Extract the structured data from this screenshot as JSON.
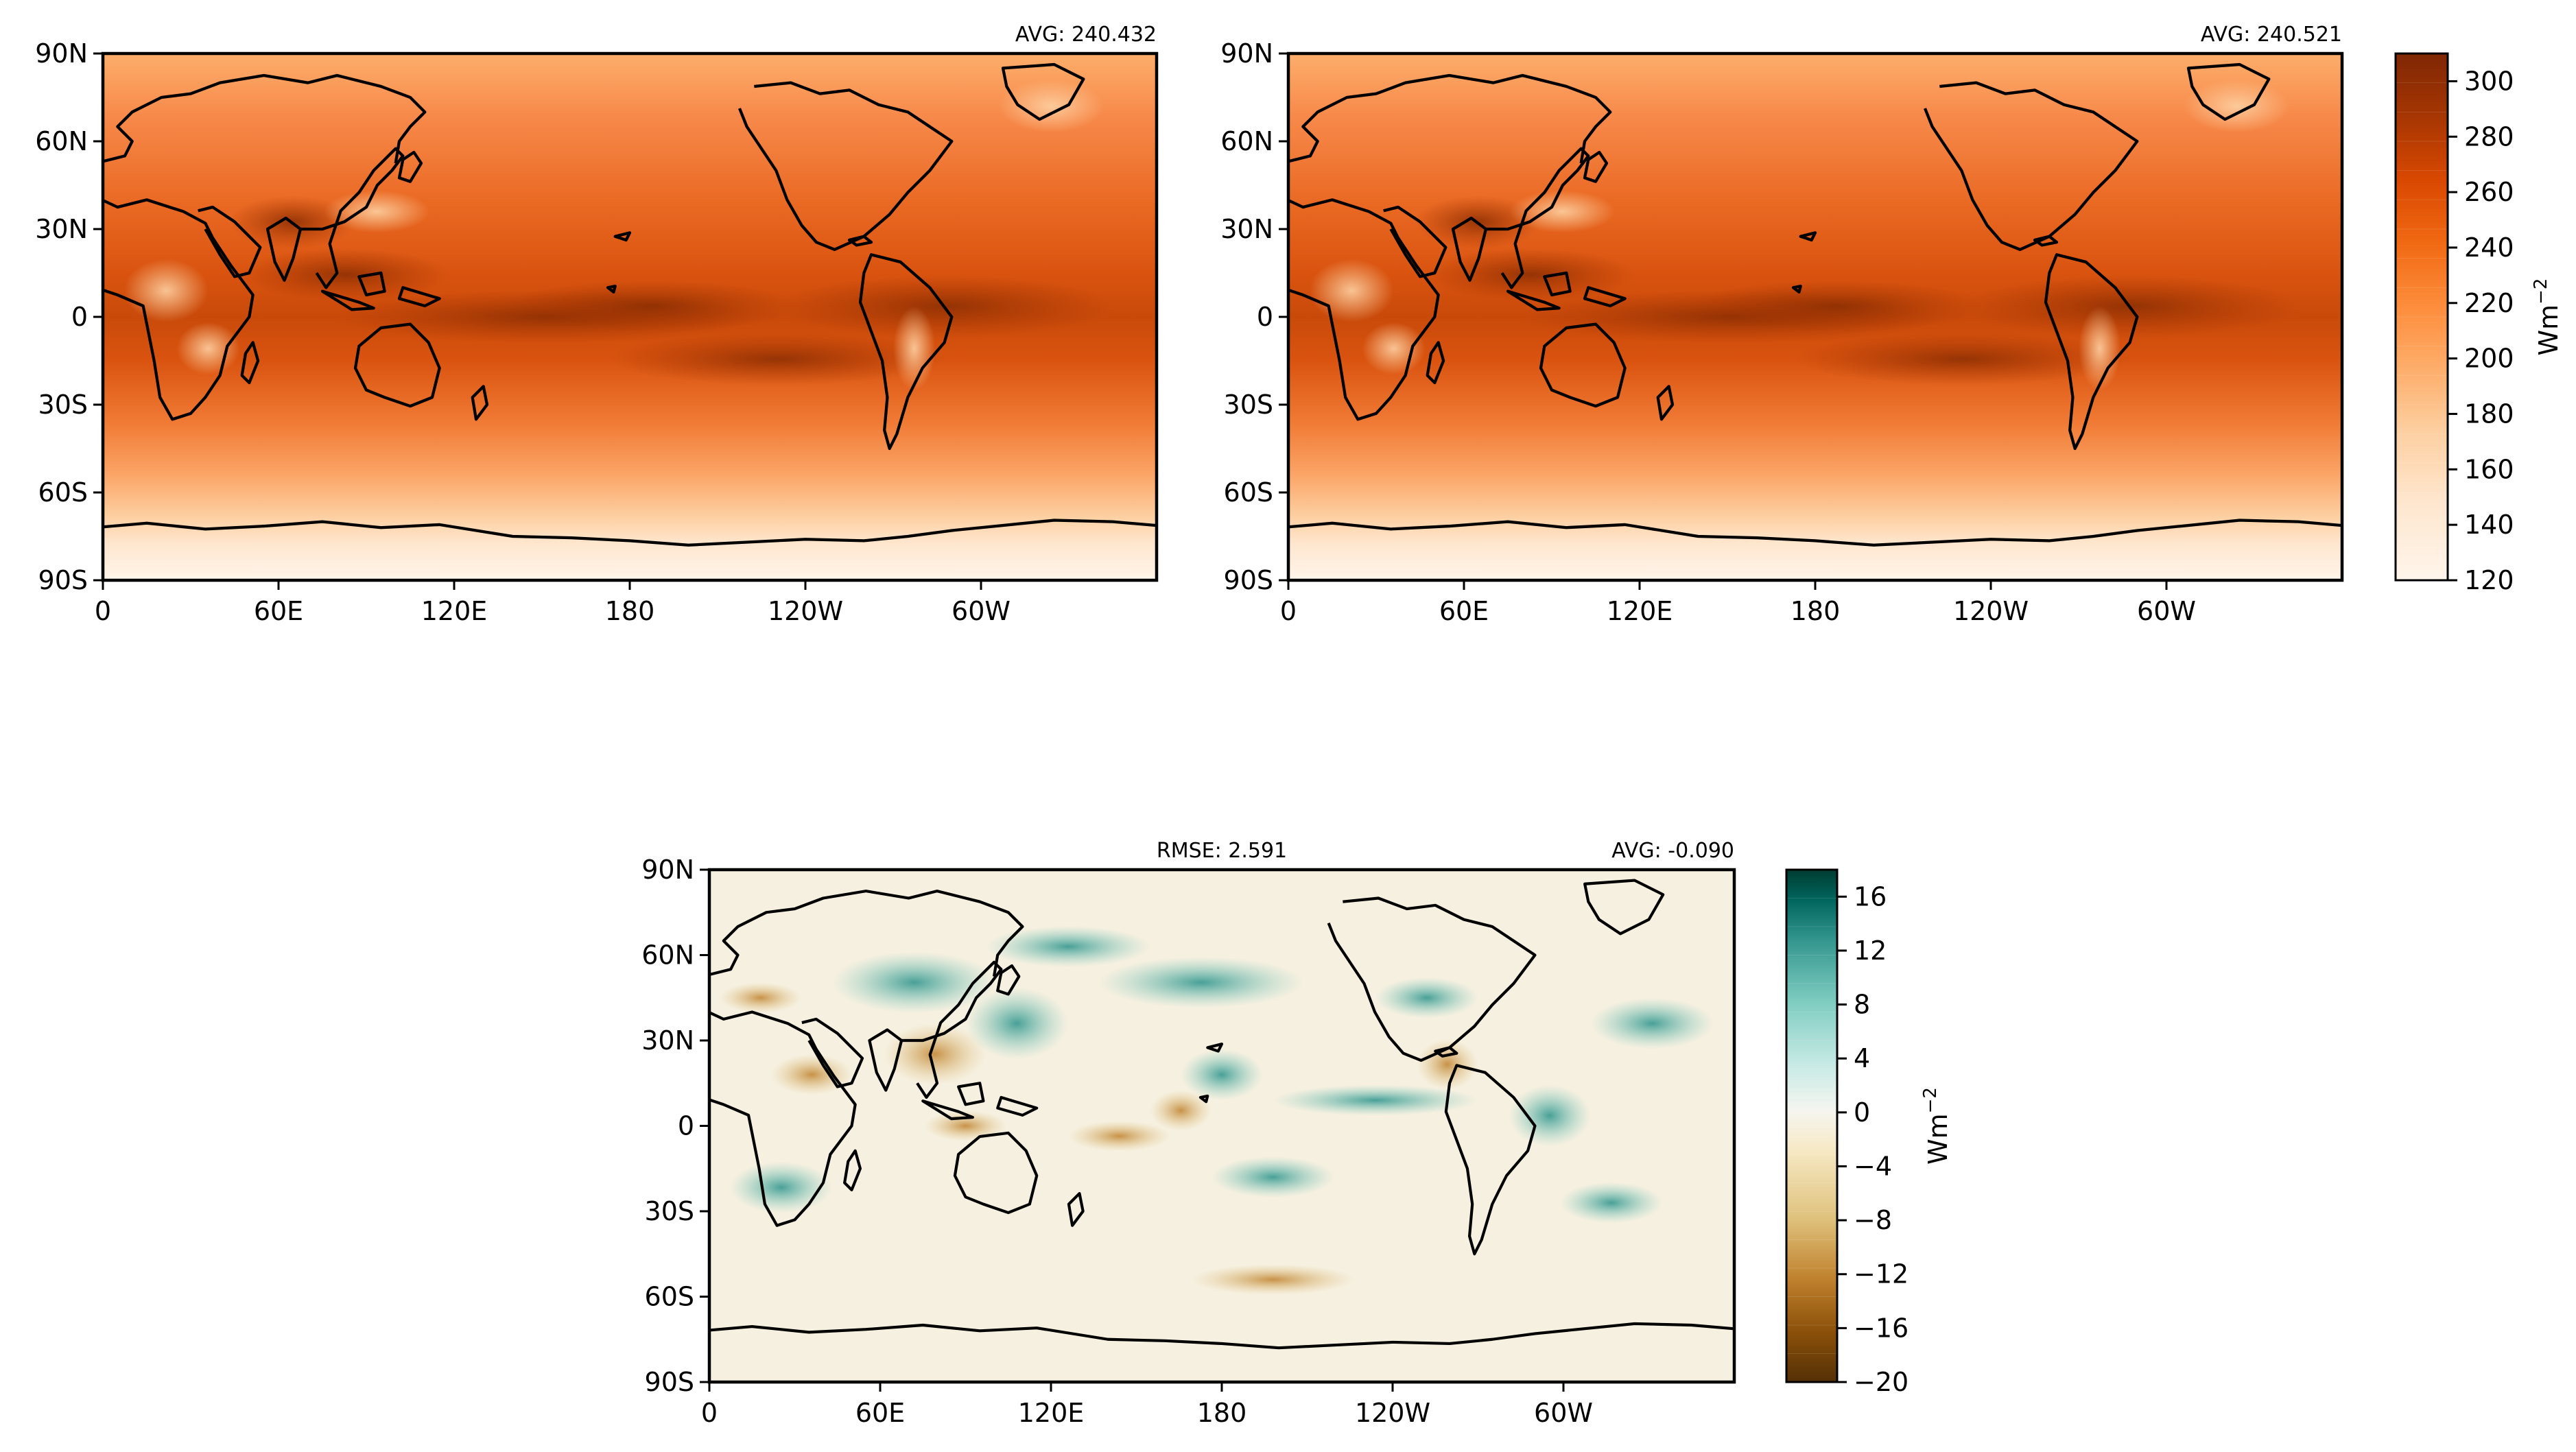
{
  "panels": [
    {
      "id": "model",
      "avg_label": "AVG: 240.432"
    },
    {
      "id": "obs",
      "avg_label": "AVG: 240.521"
    },
    {
      "id": "diff",
      "avg_label": "AVG: -0.090",
      "rmse_label": "RMSE: 2.591"
    }
  ],
  "axes": {
    "lon_ticks": [
      "0",
      "60E",
      "120E",
      "180",
      "120W",
      "60W"
    ],
    "lat_ticks": [
      "90N",
      "60N",
      "30N",
      "0",
      "30S",
      "60S",
      "90S"
    ]
  },
  "colorbar_top": {
    "unit": "Wm",
    "unit_exp": "−2",
    "ticks": [
      "300",
      "280",
      "260",
      "240",
      "220",
      "200",
      "180",
      "160",
      "140",
      "120"
    ],
    "range": [
      120,
      310
    ],
    "colors": [
      "#fff5eb",
      "#fee6ce",
      "#fdd0a2",
      "#fdae6b",
      "#fd8d3c",
      "#f16913",
      "#d94801",
      "#a63603",
      "#7f2704"
    ]
  },
  "colorbar_bottom": {
    "unit": "Wm",
    "unit_exp": "−2",
    "ticks": [
      "16",
      "12",
      "8",
      "4",
      "0",
      "−4",
      "−8",
      "−12",
      "−16",
      "−20"
    ],
    "range": [
      -20,
      18
    ],
    "colors": [
      "#543005",
      "#8c510a",
      "#bf812d",
      "#dfc27d",
      "#f6e8c3",
      "#f5f5f5",
      "#c7eae5",
      "#80cdc1",
      "#35978f",
      "#01665e",
      "#003c30"
    ]
  }
}
